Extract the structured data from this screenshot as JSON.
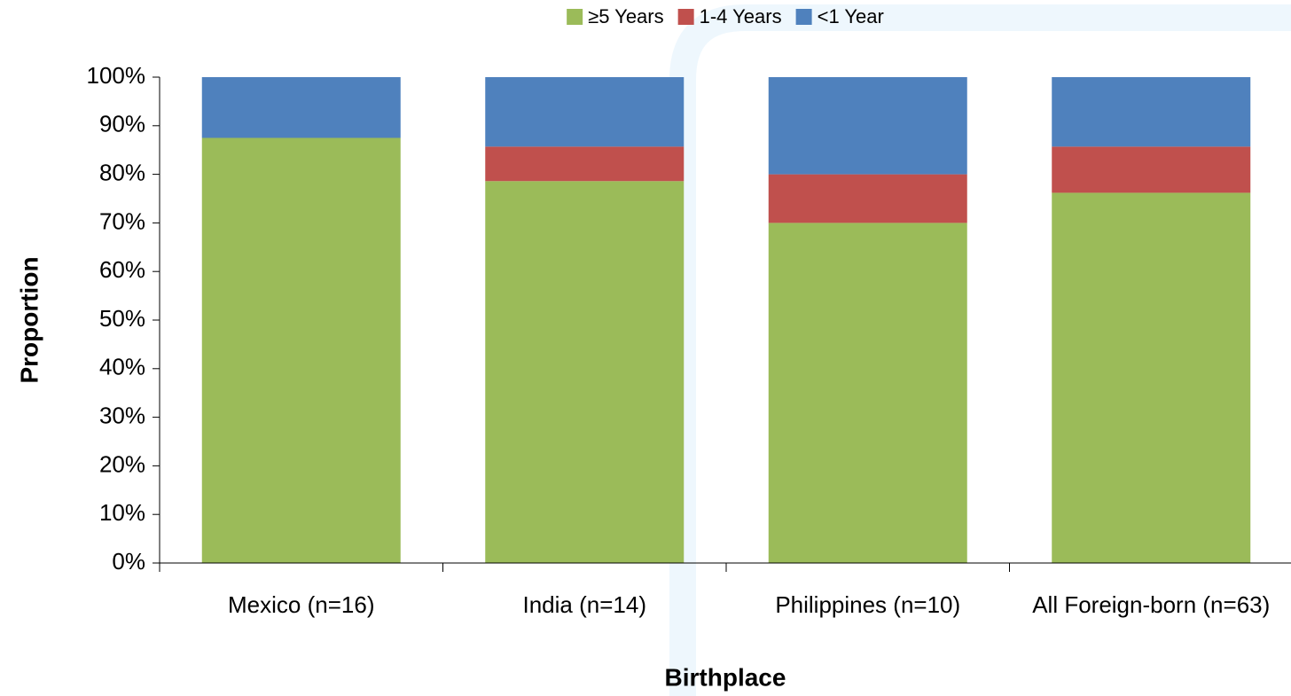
{
  "chart_data": {
    "type": "stacked_bar",
    "x_label": "Birthplace",
    "y_label": "Proportion",
    "categories": [
      "Mexico (n=16)",
      "India (n=14)",
      "Philippines (n=10)",
      "All Foreign-born (n=63)"
    ],
    "series": [
      {
        "name": "≥5 Years",
        "color": "#9bbb59",
        "values": [
          87.5,
          78.6,
          70,
          76.2
        ]
      },
      {
        "name": "1-4 Years",
        "color": "#c0504d",
        "values": [
          0,
          7.1,
          10,
          9.5
        ]
      },
      {
        "name": "<1 Year",
        "color": "#4f81bd",
        "values": [
          12.5,
          14.3,
          20,
          14.3
        ]
      }
    ],
    "ylim": [
      0,
      100
    ],
    "yticks": [
      {
        "value": 0,
        "label": "0%"
      },
      {
        "value": 10,
        "label": "10%"
      },
      {
        "value": 20,
        "label": "20%"
      },
      {
        "value": 30,
        "label": "30%"
      },
      {
        "value": 40,
        "label": "40%"
      },
      {
        "value": 50,
        "label": "50%"
      },
      {
        "value": 60,
        "label": "60%"
      },
      {
        "value": 70,
        "label": "70%"
      },
      {
        "value": 80,
        "label": "80%"
      },
      {
        "value": 90,
        "label": "90%"
      },
      {
        "value": 100,
        "label": "100%"
      }
    ],
    "legend": "top",
    "grid": false
  }
}
